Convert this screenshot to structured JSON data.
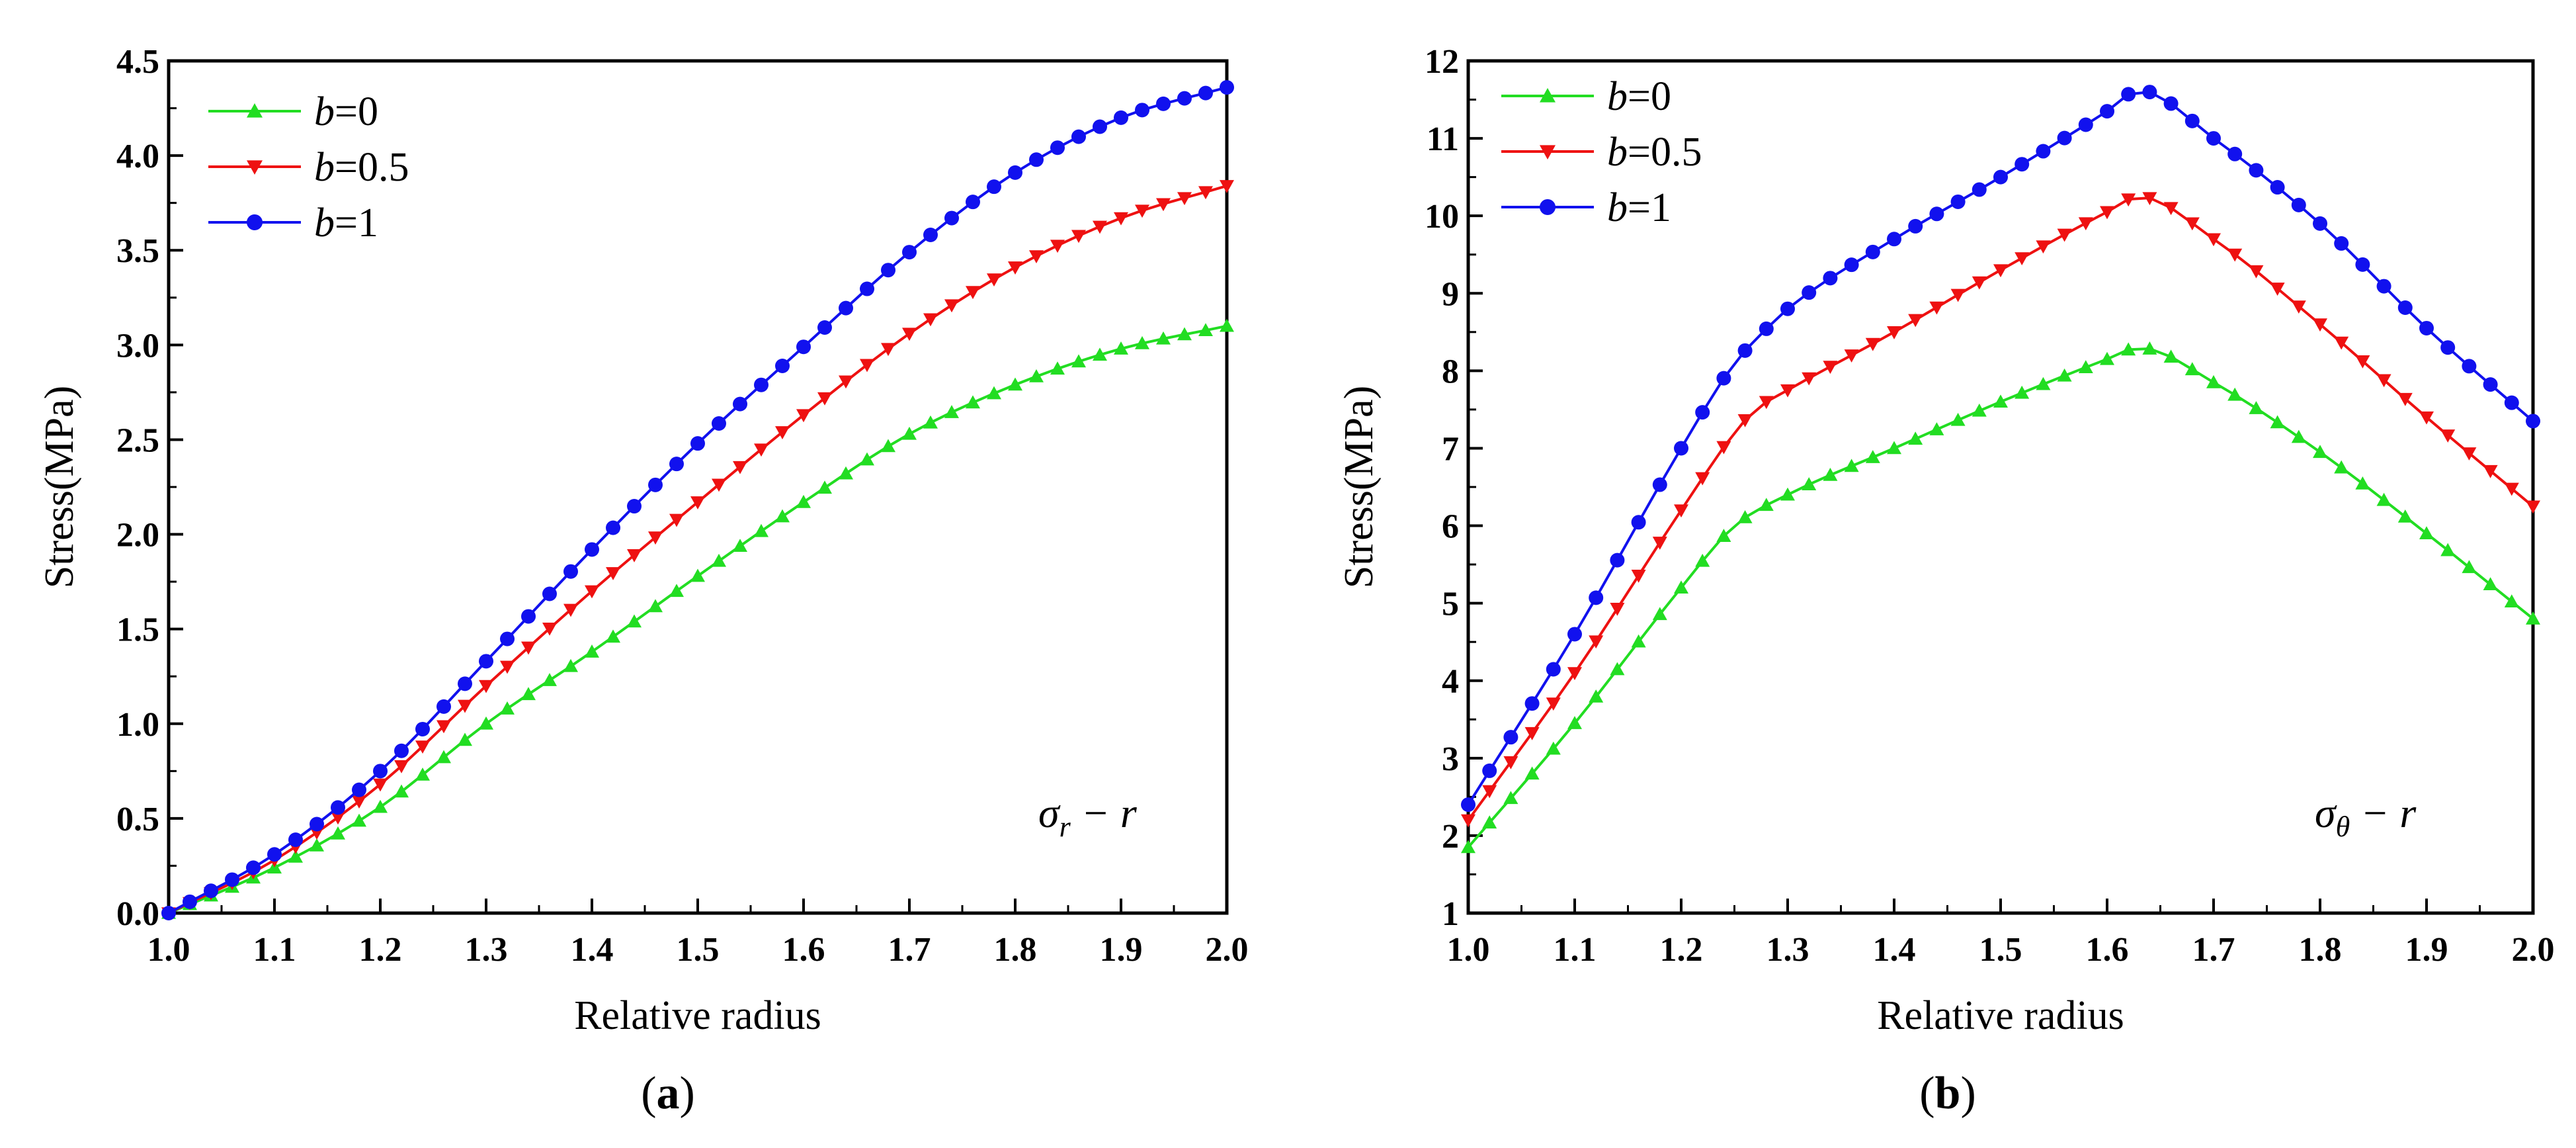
{
  "chart_data": [
    {
      "type": "line",
      "id": "a",
      "panel_label": "a",
      "xlabel": "Relative radius",
      "ylabel": "Stress(MPa)",
      "xlim": [
        1.0,
        2.0
      ],
      "ylim": [
        0.0,
        4.5
      ],
      "xticks": [
        "1.0",
        "1.1",
        "1.2",
        "1.3",
        "1.4",
        "1.5",
        "1.6",
        "1.7",
        "1.8",
        "1.9",
        "2.0"
      ],
      "yticks": [
        "0.0",
        "0.5",
        "1.0",
        "1.5",
        "2.0",
        "2.5",
        "3.0",
        "3.5",
        "4.0",
        "4.5"
      ],
      "annotation": {
        "main": "σ",
        "sub": "r",
        "rest": " − r"
      },
      "legend_position": "top-left",
      "series": [
        {
          "name_var": "b",
          "name_val": "=0",
          "color": "#22dd22",
          "marker": "triangle-up",
          "knots": [
            [
              1.0,
              0.0
            ],
            [
              1.1,
              0.24
            ],
            [
              1.2,
              0.56
            ],
            [
              1.3,
              1.0
            ],
            [
              1.4,
              1.38
            ],
            [
              1.5,
              1.78
            ],
            [
              1.6,
              2.17
            ],
            [
              1.7,
              2.53
            ],
            [
              1.8,
              2.79
            ],
            [
              1.9,
              2.98
            ],
            [
              2.0,
              3.1
            ]
          ]
        },
        {
          "name_var": "b",
          "name_val": "=0.5",
          "color": "#ee1111",
          "marker": "triangle-down",
          "knots": [
            [
              1.0,
              0.0
            ],
            [
              1.1,
              0.28
            ],
            [
              1.2,
              0.68
            ],
            [
              1.3,
              1.2
            ],
            [
              1.4,
              1.7
            ],
            [
              1.5,
              2.17
            ],
            [
              1.6,
              2.63
            ],
            [
              1.7,
              3.06
            ],
            [
              1.8,
              3.41
            ],
            [
              1.9,
              3.67
            ],
            [
              2.0,
              3.84
            ]
          ]
        },
        {
          "name_var": "b",
          "name_val": "=1",
          "color": "#1111ee",
          "marker": "circle",
          "knots": [
            [
              1.0,
              0.0
            ],
            [
              1.1,
              0.31
            ],
            [
              1.2,
              0.75
            ],
            [
              1.3,
              1.33
            ],
            [
              1.4,
              1.92
            ],
            [
              1.5,
              2.48
            ],
            [
              1.6,
              2.99
            ],
            [
              1.7,
              3.49
            ],
            [
              1.8,
              3.91
            ],
            [
              1.9,
              4.2
            ],
            [
              2.0,
              4.36
            ]
          ]
        }
      ]
    },
    {
      "type": "line",
      "id": "b",
      "panel_label": "b",
      "xlabel": "Relative radius",
      "ylabel": "Stress(MPa)",
      "xlim": [
        1.0,
        2.0
      ],
      "ylim": [
        1,
        12
      ],
      "xticks": [
        "1.0",
        "1.1",
        "1.2",
        "1.3",
        "1.4",
        "1.5",
        "1.6",
        "1.7",
        "1.8",
        "1.9",
        "2.0"
      ],
      "yticks": [
        "1",
        "2",
        "3",
        "4",
        "5",
        "6",
        "7",
        "8",
        "9",
        "10",
        "11",
        "12"
      ],
      "annotation": {
        "main": "σ",
        "sub": "θ",
        "rest": " − r"
      },
      "legend_position": "top-left",
      "series": [
        {
          "name_var": "b",
          "name_val": "=0",
          "color": "#22dd22",
          "marker": "triangle-up",
          "knots": [
            [
              1.0,
              1.85
            ],
            [
              1.1,
              3.45
            ],
            [
              1.2,
              5.2
            ],
            [
              1.25,
              6.0
            ],
            [
              1.3,
              6.4
            ],
            [
              1.4,
              7.0
            ],
            [
              1.5,
              7.6
            ],
            [
              1.6,
              8.15
            ],
            [
              1.63,
              8.3
            ],
            [
              1.7,
              7.85
            ],
            [
              1.8,
              6.95
            ],
            [
              1.9,
              5.9
            ],
            [
              2.0,
              4.8
            ]
          ]
        },
        {
          "name_var": "b",
          "name_val": "=0.5",
          "color": "#ee1111",
          "marker": "triangle-down",
          "knots": [
            [
              1.0,
              2.2
            ],
            [
              1.1,
              4.1
            ],
            [
              1.2,
              6.2
            ],
            [
              1.25,
              7.2
            ],
            [
              1.27,
              7.5
            ],
            [
              1.3,
              7.75
            ],
            [
              1.4,
              8.5
            ],
            [
              1.5,
              9.3
            ],
            [
              1.6,
              10.05
            ],
            [
              1.63,
              10.25
            ],
            [
              1.7,
              9.7
            ],
            [
              1.8,
              8.6
            ],
            [
              1.9,
              7.4
            ],
            [
              2.0,
              6.25
            ]
          ]
        },
        {
          "name_var": "b",
          "name_val": "=1",
          "color": "#1111ee",
          "marker": "circle",
          "knots": [
            [
              1.0,
              2.4
            ],
            [
              1.1,
              4.6
            ],
            [
              1.2,
              7.0
            ],
            [
              1.25,
              8.1
            ],
            [
              1.27,
              8.4
            ],
            [
              1.3,
              8.8
            ],
            [
              1.4,
              9.7
            ],
            [
              1.5,
              10.5
            ],
            [
              1.6,
              11.35
            ],
            [
              1.63,
              11.62
            ],
            [
              1.7,
              11.0
            ],
            [
              1.8,
              9.9
            ],
            [
              1.9,
              8.55
            ],
            [
              2.0,
              7.35
            ]
          ]
        }
      ]
    }
  ]
}
